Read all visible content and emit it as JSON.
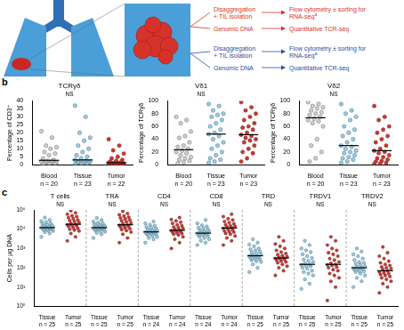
{
  "panel_labels": [
    "b",
    "c"
  ],
  "panel_a": {
    "rows": [
      {
        "color": "#d7322a",
        "items": [
          {
            "from": [
              "Disaggregation",
              "+ TIL isolation"
            ],
            "to": [
              "Flow cytometry ± sorting for",
              "RNA-seq"
            ],
            "to_superscript": "a"
          },
          {
            "from": [
              "Genomic DNA"
            ],
            "to": [
              "Quantitative TCR-seq"
            ]
          }
        ]
      },
      {
        "color": "#2b4ea2",
        "items": [
          {
            "from": [
              "Disaggregation",
              "+ TIL isolation"
            ],
            "to": [
              "Flow cytometry ± sorting for",
              "RNA-seq"
            ],
            "to_superscript": "a"
          },
          {
            "from": [
              "Genomic DNA"
            ],
            "to": [
              "Quantitative TCR-seq"
            ]
          }
        ]
      }
    ]
  },
  "chart_data": [
    {
      "type": "strip",
      "title": "TCRγδ",
      "subtitle": "NS",
      "y_label": "Percentage of CD3⁺",
      "ylim": [
        0,
        40
      ],
      "yticks": [
        0,
        5,
        10,
        15,
        20,
        25,
        30,
        35,
        40
      ],
      "categories": [
        "Blood",
        "Tissue",
        "Tumor"
      ],
      "sample_sizes": [
        "n = 20",
        "n = 23",
        "n = 22"
      ],
      "colors": [
        "#cfcfcf",
        "#8fd0ee",
        "#d8322a"
      ],
      "values": [
        [
          21,
          17,
          12,
          11,
          10,
          8,
          7,
          6,
          4,
          3,
          2.5,
          2,
          2,
          1.5,
          1.2,
          1,
          0.8,
          0.5,
          0.4,
          0.2
        ],
        [
          37,
          30,
          20,
          17,
          15,
          12,
          10,
          8,
          6,
          5,
          4,
          3,
          2.5,
          2,
          2,
          1.8,
          1.5,
          1.2,
          1,
          0.8,
          0.5,
          0.4,
          0.2
        ],
        [
          16,
          12,
          9,
          7,
          5,
          4,
          3,
          2.5,
          2,
          1.5,
          1.2,
          1.2,
          1,
          1,
          0.8,
          0.7,
          0.6,
          0.5,
          0.4,
          0.3,
          0.2,
          0.1
        ]
      ],
      "medians": [
        2.75,
        3,
        1.2
      ]
    },
    {
      "type": "strip",
      "title": "Vδ1",
      "subtitle": "NS",
      "y_label": "Percentage of TCRγδ",
      "ylim": [
        0,
        100
      ],
      "yticks": [
        0,
        20,
        40,
        60,
        80,
        100
      ],
      "categories": [
        "Blood",
        "Tissue",
        "Tumor"
      ],
      "sample_sizes": [
        "n = 20",
        "n = 23",
        "n = 23"
      ],
      "colors": [
        "#cfcfcf",
        "#8fd0ee",
        "#d8322a"
      ],
      "values": [
        [
          75,
          70,
          65,
          52,
          45,
          42,
          35,
          30,
          28,
          25,
          22,
          20,
          18,
          15,
          12,
          10,
          8,
          6,
          4,
          2
        ],
        [
          95,
          92,
          85,
          80,
          78,
          75,
          70,
          65,
          60,
          55,
          50,
          48,
          45,
          40,
          35,
          30,
          25,
          20,
          15,
          10,
          8,
          5,
          3
        ],
        [
          98,
          90,
          85,
          80,
          75,
          70,
          65,
          60,
          58,
          55,
          50,
          47,
          45,
          42,
          40,
          38,
          35,
          30,
          25,
          20,
          18,
          10,
          5
        ]
      ],
      "medians": [
        23.5,
        48,
        47
      ]
    },
    {
      "type": "strip",
      "title": "Vδ2",
      "subtitle": "NS",
      "y_label": "Percentage of TCRγδ",
      "ylim": [
        0,
        100
      ],
      "yticks": [
        0,
        20,
        40,
        60,
        80,
        100
      ],
      "categories": [
        "Blood",
        "Tissue",
        "Tumor"
      ],
      "sample_sizes": [
        "n = 20",
        "n = 23",
        "n = 23"
      ],
      "colors": [
        "#cfcfcf",
        "#8fd0ee",
        "#d8322a"
      ],
      "values": [
        [
          98,
          95,
          92,
          90,
          88,
          85,
          82,
          80,
          78,
          75,
          72,
          70,
          68,
          65,
          60,
          40,
          30,
          20,
          10,
          5
        ],
        [
          95,
          85,
          80,
          75,
          70,
          60,
          55,
          50,
          45,
          40,
          35,
          30,
          28,
          25,
          22,
          20,
          18,
          15,
          12,
          10,
          8,
          5,
          3
        ],
        [
          92,
          75,
          70,
          60,
          55,
          50,
          45,
          40,
          35,
          30,
          25,
          22,
          20,
          18,
          15,
          12,
          10,
          8,
          6,
          5,
          3,
          2,
          1
        ]
      ],
      "medians": [
        73.5,
        30,
        22
      ]
    },
    {
      "type": "strip",
      "log": "y",
      "y_label": "Cells per µg DNA",
      "ylim": [
        1,
        100000
      ],
      "yticks": [
        {
          "value": 1,
          "label": "10⁰"
        },
        {
          "value": 10,
          "label": "10¹"
        },
        {
          "value": 100,
          "label": "10²"
        },
        {
          "value": 1000,
          "label": "10³"
        },
        {
          "value": 10000,
          "label": "10⁴"
        },
        {
          "value": 100000,
          "label": "10⁵"
        }
      ],
      "groups": [
        {
          "name": "T cells",
          "subtitle": "NS"
        },
        {
          "name": "TRA",
          "subtitle": "NS"
        },
        {
          "name": "CD4",
          "subtitle": "NS"
        },
        {
          "name": "CD8",
          "subtitle": "NS"
        },
        {
          "name": "TRD",
          "subtitle": "NS"
        },
        {
          "name": "TRDV1",
          "subtitle": "NS"
        },
        {
          "name": "TRDV2",
          "subtitle": "NS"
        }
      ],
      "categories": [
        "Tissue",
        "Tumor",
        "Tissue",
        "Tumor",
        "Tissue",
        "Tumor",
        "Tissue",
        "Tumor",
        "Tissue",
        "Tumor",
        "Tissue",
        "Tumor",
        "Tissue",
        "Tumor"
      ],
      "sample_sizes": [
        "n = 25",
        "n = 25",
        "n = 25",
        "n = 25",
        "n = 24",
        "n = 24",
        "n = 24",
        "n = 24",
        "n = 25",
        "n = 25",
        "n = 25",
        "n = 25",
        "n = 25",
        "n = 25"
      ],
      "colors": [
        "#8fd0ee",
        "#d8322a",
        "#8fd0ee",
        "#d8322a",
        "#8fd0ee",
        "#d8322a",
        "#8fd0ee",
        "#d8322a",
        "#8fd0ee",
        "#d8322a",
        "#8fd0ee",
        "#d8322a",
        "#8fd0ee",
        "#d8322a"
      ],
      "values": [
        [
          4000,
          6000,
          7000,
          8000,
          8500,
          9000,
          10000,
          10000,
          11000,
          11000,
          12000,
          12000,
          12000,
          13000,
          13000,
          14000,
          15000,
          16000,
          17000,
          19000,
          20000,
          23000,
          26000,
          30000,
          40000
        ],
        [
          2500,
          4000,
          6000,
          8000,
          9000,
          10000,
          11000,
          12000,
          14000,
          15000,
          16000,
          17000,
          18000,
          20000,
          22000,
          25000,
          28000,
          30000,
          35000,
          40000,
          45000,
          50000,
          60000,
          70000,
          90000
        ],
        [
          3500,
          5500,
          6500,
          7500,
          8000,
          8500,
          9500,
          10000,
          10000,
          11000,
          11000,
          11500,
          12000,
          12500,
          13000,
          14000,
          15000,
          16000,
          17000,
          18000,
          20000,
          22000,
          25000,
          30000,
          38000
        ],
        [
          2000,
          3500,
          5500,
          7000,
          8500,
          9500,
          10500,
          11500,
          13000,
          14000,
          15000,
          16000,
          17000,
          19000,
          21000,
          24000,
          27000,
          30000,
          34000,
          38000,
          42000,
          48000,
          55000,
          65000,
          85000
        ],
        [
          2000,
          3000,
          3500,
          4000,
          4500,
          5000,
          5500,
          6000,
          6000,
          6500,
          7000,
          7000,
          7500,
          8000,
          8500,
          9000,
          10000,
          11000,
          12000,
          13000,
          15000,
          17000,
          20000,
          25000
        ],
        [
          1000,
          2000,
          3000,
          4000,
          5000,
          5500,
          6000,
          6500,
          7000,
          7500,
          8000,
          8500,
          9000,
          10000,
          11000,
          12000,
          13000,
          15000,
          17000,
          20000,
          23000,
          27000,
          32000,
          40000
        ],
        [
          1500,
          2000,
          2500,
          3000,
          3500,
          4000,
          4500,
          5000,
          5000,
          5500,
          6000,
          6000,
          6500,
          7000,
          7500,
          8000,
          9000,
          10000,
          11000,
          12000,
          14000,
          16000,
          20000,
          30000
        ],
        [
          1500,
          2500,
          3500,
          4500,
          5500,
          6000,
          7000,
          7500,
          8000,
          9000,
          10000,
          11000,
          12000,
          13000,
          14000,
          15000,
          17000,
          19000,
          22000,
          25000,
          30000,
          35000,
          45000,
          60000
        ],
        [
          60,
          100,
          150,
          200,
          220,
          250,
          280,
          300,
          320,
          350,
          380,
          400,
          420,
          450,
          500,
          550,
          600,
          700,
          800,
          900,
          1000,
          1300,
          1600,
          2000,
          3000
        ],
        [
          40,
          70,
          100,
          120,
          150,
          180,
          200,
          220,
          250,
          270,
          290,
          300,
          320,
          350,
          380,
          420,
          480,
          550,
          650,
          800,
          1000,
          1300,
          1700,
          2500,
          4000
        ],
        [
          8,
          15,
          25,
          40,
          50,
          60,
          70,
          90,
          100,
          120,
          130,
          140,
          150,
          170,
          200,
          230,
          270,
          320,
          400,
          500,
          650,
          800,
          1000,
          1500,
          2500
        ],
        [
          2,
          10,
          20,
          30,
          40,
          50,
          70,
          80,
          100,
          110,
          130,
          140,
          150,
          170,
          200,
          250,
          300,
          400,
          500,
          600,
          800,
          1000,
          1500,
          2500,
          4000
        ],
        [
          10,
          20,
          30,
          40,
          50,
          60,
          65,
          70,
          80,
          85,
          90,
          95,
          100,
          110,
          120,
          140,
          160,
          180,
          200,
          250,
          300,
          400,
          500,
          700,
          1000
        ],
        [
          5,
          10,
          15,
          20,
          25,
          30,
          35,
          40,
          45,
          50,
          55,
          60,
          70,
          80,
          90,
          100,
          110,
          130,
          150,
          180,
          220,
          300,
          400,
          600,
          1200
        ]
      ],
      "medians": [
        12000,
        18000,
        12000,
        17000,
        7250,
        8750,
        6250,
        11500,
        420,
        320,
        150,
        150,
        100,
        70
      ]
    }
  ]
}
